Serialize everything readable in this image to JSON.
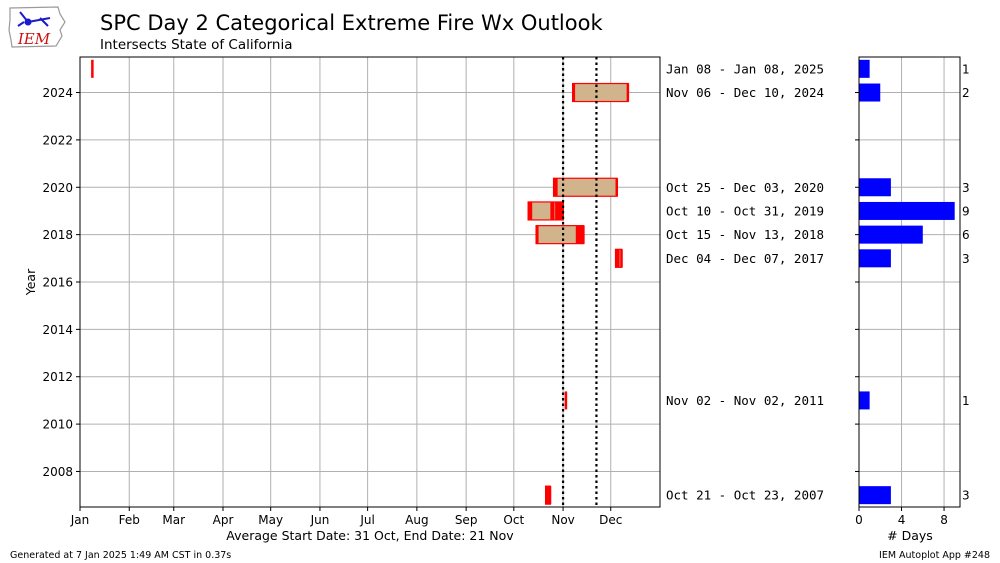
{
  "title": "SPC Day 2 Categorical Extreme Fire Wx Outlook",
  "subtitle": "Intersects State of California",
  "footer_left": "Generated at 7 Jan 2025 1:49 AM CST in 0.37s",
  "footer_right": "IEM Autoplot App #248",
  "logo_text": "IEM",
  "chart_data": [
    {
      "type": "bar",
      "orientation": "horizontal-timeline",
      "ylabel": "Year",
      "xlabel": "Average Start Date: 31 Oct, End Date: 21 Nov",
      "x_ticks": [
        "Jan",
        "Feb",
        "Mar",
        "Apr",
        "May",
        "Jun",
        "Jul",
        "Aug",
        "Sep",
        "Oct",
        "Nov",
        "Dec"
      ],
      "y_ticks": [
        2008,
        2010,
        2012,
        2014,
        2016,
        2018,
        2020,
        2022,
        2024
      ],
      "ylim": [
        2006.5,
        2025.5
      ],
      "xlim_day_of_year": [
        1,
        366
      ],
      "average_start_day": 305,
      "average_end_day": 326,
      "colors": {
        "event": "#ff0000",
        "span_fill": "#d2b48c",
        "span_edge": "#ff0000",
        "avg_line": "#000000",
        "grid": "#b0b0b0"
      },
      "series": [
        {
          "year": 2025,
          "range_label": "Jan 08 - Jan 08, 2025",
          "start_day": 8,
          "end_day": 8,
          "event_days": [
            8
          ]
        },
        {
          "year": 2024,
          "range_label": "Nov 06 - Dec 10, 2024",
          "start_day": 311,
          "end_day": 345,
          "event_days": [
            311,
            345
          ]
        },
        {
          "year": 2020,
          "range_label": "Oct 25 - Dec 03, 2020",
          "start_day": 299,
          "end_day": 338,
          "event_days": [
            299,
            300,
            338
          ]
        },
        {
          "year": 2019,
          "range_label": "Oct 10 - Oct 31, 2019",
          "start_day": 283,
          "end_day": 304,
          "event_days": [
            283,
            284,
            297,
            298,
            300,
            301,
            302,
            303,
            304
          ]
        },
        {
          "year": 2018,
          "range_label": "Oct 15 - Nov 13, 2018",
          "start_day": 288,
          "end_day": 317,
          "event_days": [
            288,
            313,
            314,
            315,
            316,
            317
          ]
        },
        {
          "year": 2017,
          "range_label": "Dec 04 - Dec 07, 2017",
          "start_day": 338,
          "end_day": 341,
          "event_days": [
            338,
            339,
            341
          ]
        },
        {
          "year": 2011,
          "range_label": "Nov 02 - Nov 02, 2011",
          "start_day": 306,
          "end_day": 306,
          "event_days": [
            306
          ]
        },
        {
          "year": 2007,
          "range_label": "Oct 21 - Oct 23, 2007",
          "start_day": 294,
          "end_day": 296,
          "event_days": [
            294,
            295,
            296
          ]
        }
      ]
    },
    {
      "type": "bar",
      "orientation": "horizontal",
      "xlabel": "# Days",
      "x_ticks": [
        0,
        4,
        8
      ],
      "xlim": [
        0,
        9.5
      ],
      "color": "#0000ff",
      "categories": [
        2025,
        2024,
        2020,
        2019,
        2018,
        2017,
        2011,
        2007
      ],
      "values": [
        1,
        2,
        3,
        9,
        6,
        3,
        1,
        3
      ]
    }
  ]
}
